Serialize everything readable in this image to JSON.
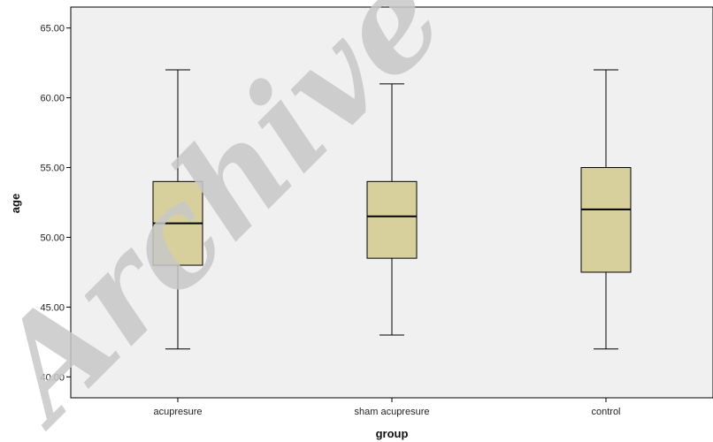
{
  "chart_data": {
    "type": "boxplot",
    "title": "",
    "xlabel": "group",
    "ylabel": "age",
    "ylim": [
      38.5,
      66.5
    ],
    "y_ticks": [
      "40.00",
      "45.00",
      "50.00",
      "55.00",
      "60.00",
      "65.00"
    ],
    "categories": [
      "acupresure",
      "sham acupresure",
      "control"
    ],
    "boxes": [
      {
        "category": "acupresure",
        "min": 42,
        "q1": 48,
        "median": 51,
        "q3": 54,
        "max": 62
      },
      {
        "category": "sham acupresure",
        "min": 43,
        "q1": 48.5,
        "median": 51.5,
        "q3": 54,
        "max": 61
      },
      {
        "category": "control",
        "min": 42,
        "q1": 47.5,
        "median": 52,
        "q3": 55,
        "max": 62
      }
    ],
    "grid": false,
    "colors": {
      "plot_background": "#f0f0f0",
      "box_fill": "#d8d09c",
      "line": "#000000"
    }
  },
  "watermark": {
    "text": "Archive of"
  }
}
